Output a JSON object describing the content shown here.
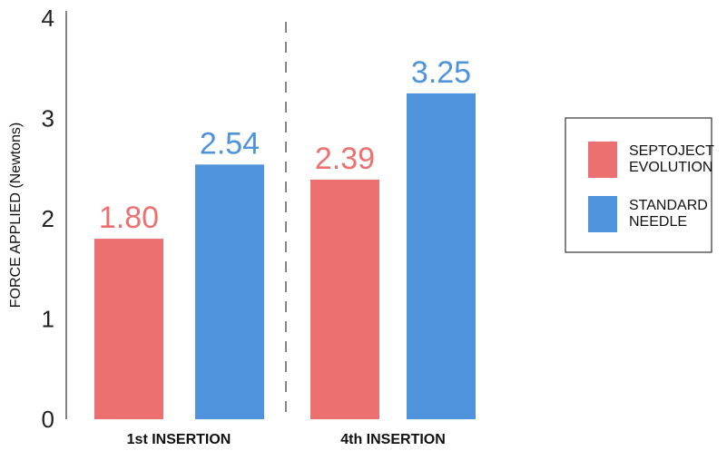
{
  "chart_data": {
    "type": "bar",
    "title": "",
    "xlabel": "",
    "ylabel": "FORCE APPLIED (Newtons)",
    "ylim": [
      0,
      4
    ],
    "yticks": [
      "0",
      "1",
      "2",
      "3",
      "4"
    ],
    "categories": [
      "1st INSERTION",
      "4th INSERTION"
    ],
    "series": [
      {
        "name": "SEPTOJECT EVOLUTION",
        "legend_lines": [
          "SEPTOJECT",
          "EVOLUTION"
        ],
        "color": "#ec7070",
        "values": [
          1.8,
          2.39
        ],
        "labels": [
          "1.80",
          "2.39"
        ]
      },
      {
        "name": "STANDARD NEEDLE",
        "legend_lines": [
          "STANDARD",
          "NEEDLE"
        ],
        "color": "#4e93db",
        "values": [
          2.54,
          3.25
        ],
        "labels": [
          "2.54",
          "3.25"
        ]
      }
    ],
    "grid": false,
    "legend_position": "right"
  }
}
